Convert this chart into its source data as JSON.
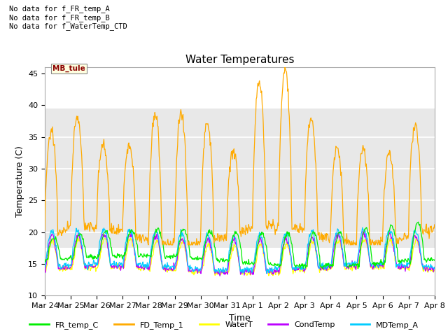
{
  "title": "Water Temperatures",
  "xlabel": "Time",
  "ylabel": "Temperature (C)",
  "ylim": [
    10,
    46
  ],
  "yticks": [
    10,
    15,
    20,
    25,
    30,
    35,
    40,
    45
  ],
  "colors": {
    "FR_temp_C": "#00ee00",
    "FD_Temp_1": "#ffaa00",
    "WaterT": "#ffff00",
    "CondTemp": "#bb00ff",
    "MDTemp_A": "#00ccff"
  },
  "annotation_text": "No data for f_FR_temp_A\nNo data for f_FR_temp_B\nNo data for f_WaterTemp_CTD",
  "mb_tule_label": "MB_tule",
  "background_band_lo": 17.5,
  "background_band_hi": 39.5,
  "xtick_labels": [
    "Mar 24",
    "Mar 25",
    "Mar 26",
    "Mar 27",
    "Mar 28",
    "Mar 29",
    "Mar 30",
    "Mar 31",
    "Apr 1",
    "Apr 2",
    "Apr 3",
    "Apr 4",
    "Apr 5",
    "Apr 6",
    "Apr 7",
    "Apr 8"
  ],
  "n_points": 720
}
